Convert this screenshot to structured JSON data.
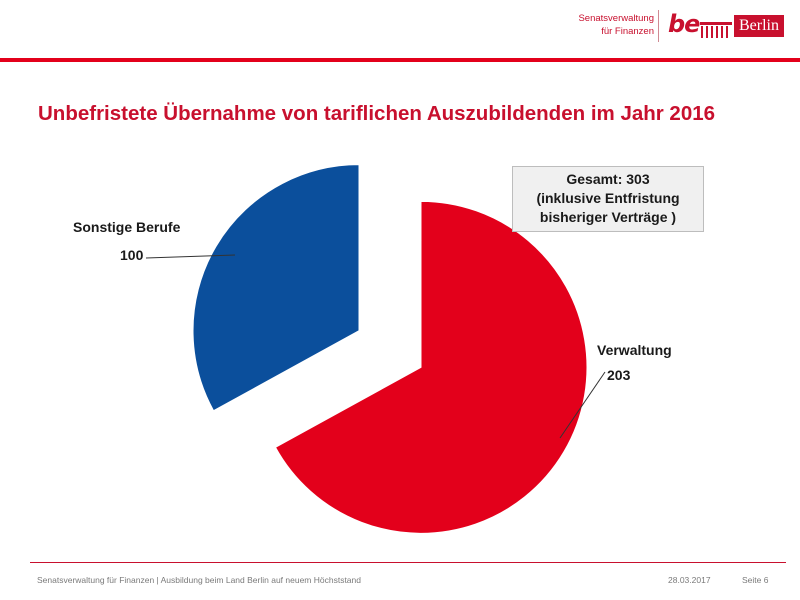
{
  "header": {
    "org_line1": "Senatsverwaltung",
    "org_line2": "für Finanzen",
    "logo_be": "be",
    "logo_berlin": "Berlin",
    "accent_color": "#c8102e"
  },
  "title": "Unbefristete Übernahme von tariflichen Auszubildenden im Jahr 2016",
  "total_box": {
    "line1": "Gesamt: 303",
    "line2": "(inklusive Entfristung",
    "line3": "bisheriger Verträge )"
  },
  "chart_data": {
    "type": "pie",
    "title": "Unbefristete Übernahme von tariflichen Auszubildenden im Jahr 2016",
    "categories": [
      "Verwaltung",
      "Sonstige Berufe"
    ],
    "values": [
      203,
      100
    ],
    "total": 303,
    "colors": [
      "#e3001b",
      "#0b4f9c"
    ],
    "exploded": true,
    "data_labels": [
      "203",
      "100"
    ]
  },
  "footer": {
    "source": "Senatsverwaltung für Finanzen | Ausbildung beim Land Berlin auf neuem Höchststand",
    "date": "28.03.2017",
    "page": "Seite 6"
  }
}
